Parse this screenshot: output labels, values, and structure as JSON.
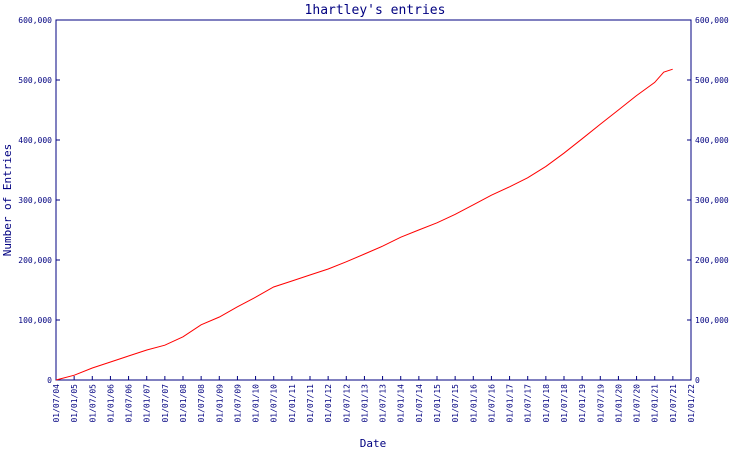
{
  "chart_data": {
    "type": "line",
    "title": "1hartley's entries",
    "xlabel": "Date",
    "ylabel": "Number of Entries",
    "ylim": [
      0,
      600000
    ],
    "yticks": [
      0,
      100000,
      200000,
      300000,
      400000,
      500000,
      600000
    ],
    "ytick_labels": [
      "0",
      "100,000",
      "200,000",
      "300,000",
      "400,000",
      "500,000",
      "600,000"
    ],
    "xlim": [
      "2004-07-01",
      "2022-01-01"
    ],
    "xtick_labels": [
      "01/07/04",
      "01/01/05",
      "01/07/05",
      "01/01/06",
      "01/07/06",
      "01/01/07",
      "01/07/07",
      "01/01/08",
      "01/07/08",
      "01/01/09",
      "01/07/09",
      "01/01/10",
      "01/07/10",
      "01/01/11",
      "01/07/11",
      "01/01/12",
      "01/07/12",
      "01/01/13",
      "01/07/13",
      "01/01/14",
      "01/07/14",
      "01/01/15",
      "01/07/15",
      "01/01/16",
      "01/07/16",
      "01/01/17",
      "01/07/17",
      "01/01/18",
      "01/07/18",
      "01/01/19",
      "01/07/19",
      "01/01/20",
      "01/07/20",
      "01/01/21",
      "01/07/21",
      "01/01/22"
    ],
    "grid": false,
    "series": [
      {
        "color": "#ff0000",
        "points": [
          [
            "2004-07-01",
            0
          ],
          [
            "2005-01-01",
            8000
          ],
          [
            "2005-07-01",
            20000
          ],
          [
            "2006-01-01",
            30000
          ],
          [
            "2006-07-01",
            40000
          ],
          [
            "2007-01-01",
            50000
          ],
          [
            "2007-07-01",
            58000
          ],
          [
            "2008-01-01",
            72000
          ],
          [
            "2008-07-01",
            92000
          ],
          [
            "2009-01-01",
            105000
          ],
          [
            "2009-07-01",
            122000
          ],
          [
            "2010-01-01",
            138000
          ],
          [
            "2010-07-01",
            155000
          ],
          [
            "2011-01-01",
            165000
          ],
          [
            "2011-07-01",
            175000
          ],
          [
            "2012-01-01",
            185000
          ],
          [
            "2012-07-01",
            197000
          ],
          [
            "2013-01-01",
            210000
          ],
          [
            "2013-07-01",
            223000
          ],
          [
            "2014-01-01",
            238000
          ],
          [
            "2014-07-01",
            250000
          ],
          [
            "2015-01-01",
            262000
          ],
          [
            "2015-07-01",
            276000
          ],
          [
            "2016-01-01",
            292000
          ],
          [
            "2016-07-01",
            308000
          ],
          [
            "2017-01-01",
            322000
          ],
          [
            "2017-07-01",
            337000
          ],
          [
            "2018-01-01",
            356000
          ],
          [
            "2018-07-01",
            378000
          ],
          [
            "2019-01-01",
            402000
          ],
          [
            "2019-07-01",
            426000
          ],
          [
            "2020-01-01",
            450000
          ],
          [
            "2020-07-01",
            474000
          ],
          [
            "2021-01-01",
            496000
          ],
          [
            "2021-04-01",
            513000
          ],
          [
            "2021-07-01",
            518000
          ]
        ]
      }
    ]
  }
}
